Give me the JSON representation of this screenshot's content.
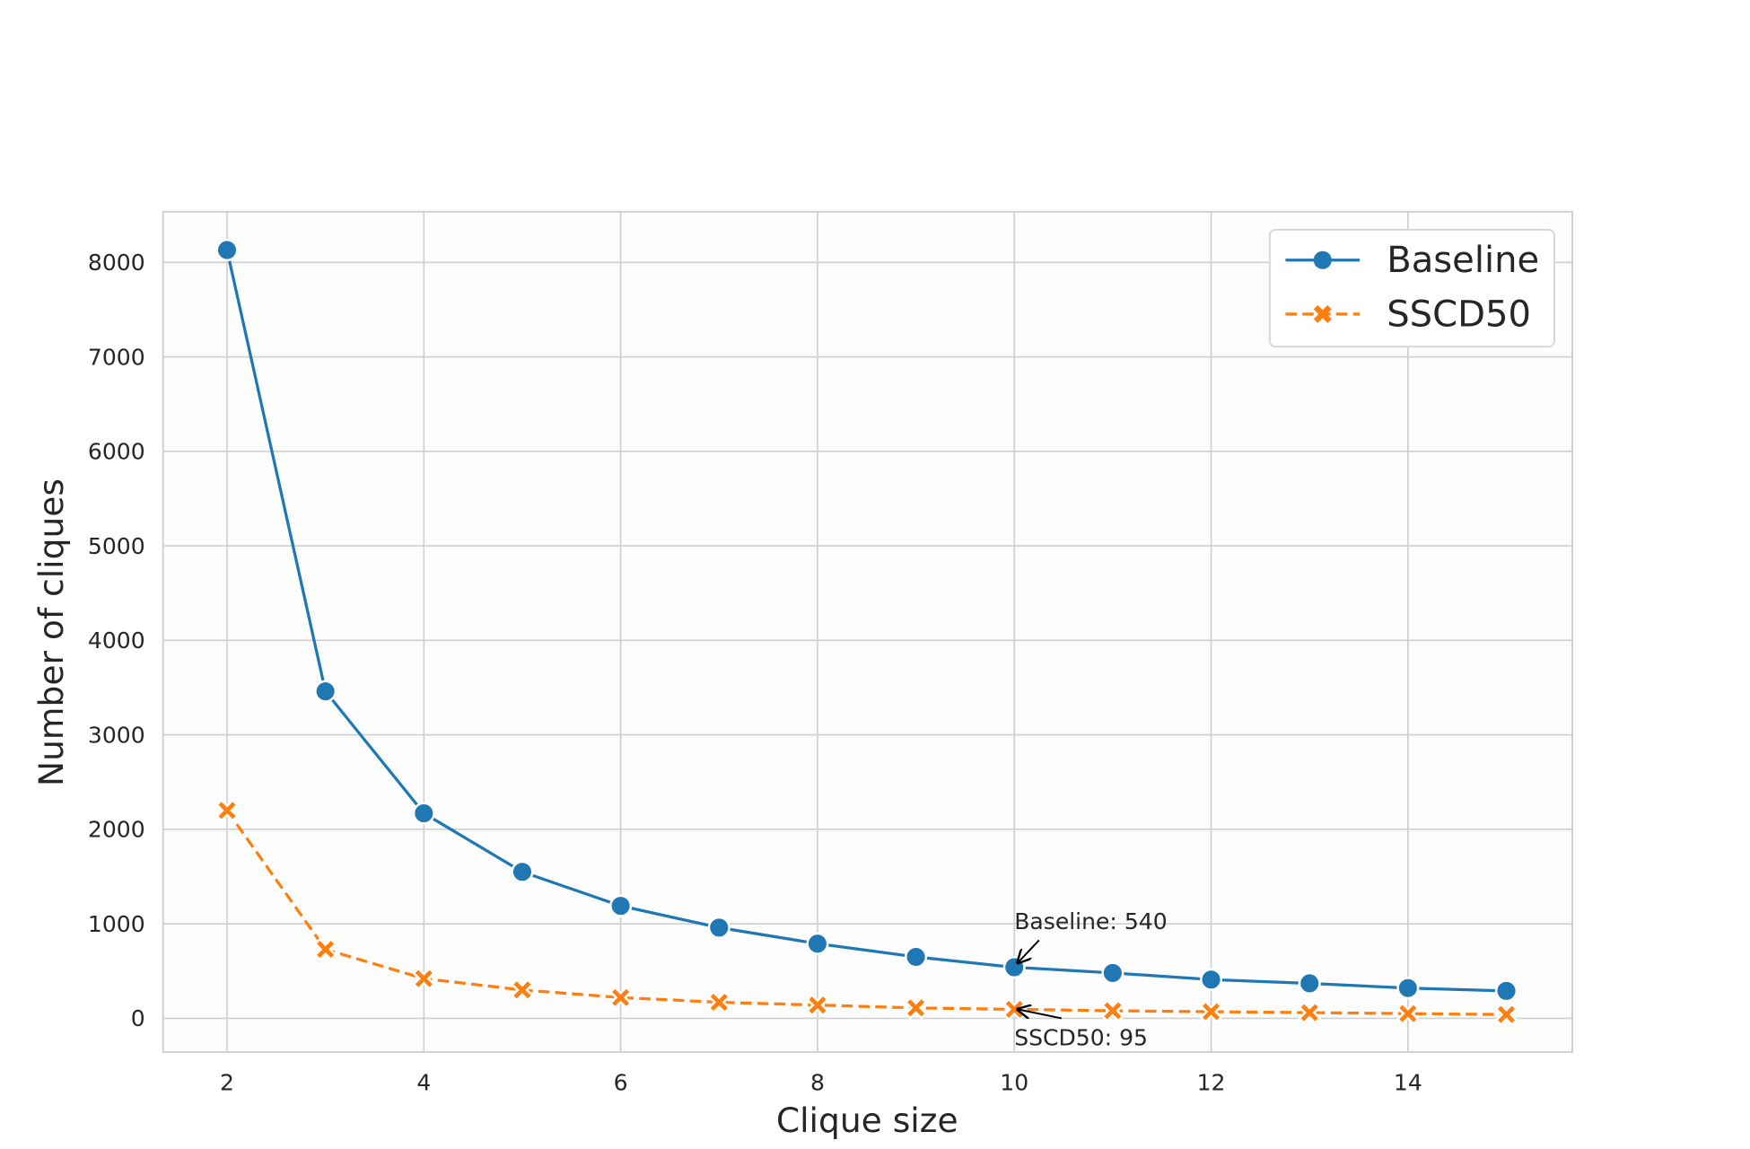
{
  "chart_data": {
    "type": "line",
    "x_label": "Clique size",
    "y_label": "Number of cliques",
    "x": [
      2,
      3,
      4,
      5,
      6,
      7,
      8,
      9,
      10,
      11,
      12,
      13,
      14,
      15
    ],
    "series": [
      {
        "name": "Baseline",
        "color": "#1f77b4",
        "marker": "circle",
        "dash": false,
        "values": [
          8130,
          3460,
          2170,
          1550,
          1190,
          960,
          790,
          650,
          540,
          480,
          410,
          370,
          320,
          290
        ]
      },
      {
        "name": "SSCD50",
        "color": "#ff7f0e",
        "marker": "x",
        "dash": true,
        "values": [
          2200,
          730,
          420,
          300,
          220,
          170,
          140,
          110,
          95,
          80,
          70,
          60,
          50,
          40
        ]
      }
    ],
    "annotations": [
      {
        "text": "Baseline: 540",
        "x": 10,
        "y": 540
      },
      {
        "text": "SSCD50: 95",
        "x": 10,
        "y": 95
      }
    ],
    "xlim": [
      1.35,
      15.67
    ],
    "ylim": [
      -357,
      8536
    ],
    "xticks": [
      2,
      4,
      6,
      8,
      10,
      12,
      14
    ],
    "yticks": [
      0,
      1000,
      2000,
      3000,
      4000,
      5000,
      6000,
      7000,
      8000
    ],
    "grid": true,
    "legend": "upper right"
  }
}
